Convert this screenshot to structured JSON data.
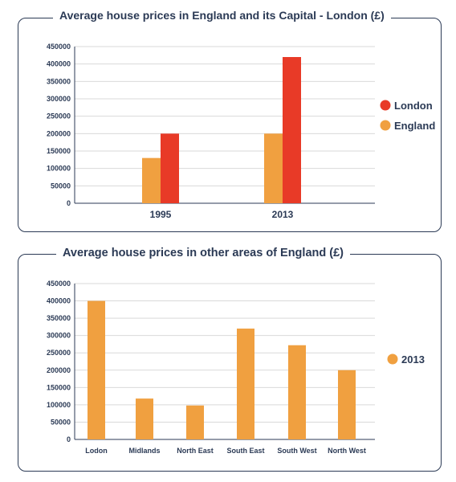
{
  "charts": [
    {
      "type": "bar",
      "title": "Average house prices in England and its Capital - London  (£)",
      "categories": [
        "1995",
        "2013"
      ],
      "series": [
        {
          "name": "England",
          "values": [
            130000,
            200000
          ],
          "color": "#f0a040"
        },
        {
          "name": "London",
          "values": [
            200000,
            420000
          ],
          "color": "#e83a27"
        }
      ],
      "ylim": [
        0,
        450000
      ],
      "yticks": [
        0,
        50000,
        100000,
        150000,
        200000,
        250000,
        300000,
        350000,
        400000,
        450000
      ],
      "legend_order": [
        "London",
        "England"
      ],
      "legend_position": "right",
      "grid": true
    },
    {
      "type": "bar",
      "title": "Average house prices in other areas of England (£)",
      "categories": [
        "Lodon",
        "Midlands",
        "North East",
        "South East",
        "South West",
        "North West"
      ],
      "series": [
        {
          "name": "2013",
          "values": [
            400000,
            118000,
            98000,
            320000,
            272000,
            200000
          ],
          "color": "#f0a040"
        }
      ],
      "ylim": [
        0,
        450000
      ],
      "yticks": [
        0,
        50000,
        100000,
        150000,
        200000,
        250000,
        300000,
        350000,
        400000,
        450000
      ],
      "legend_order": [
        "2013"
      ],
      "legend_position": "right",
      "grid": true
    }
  ]
}
